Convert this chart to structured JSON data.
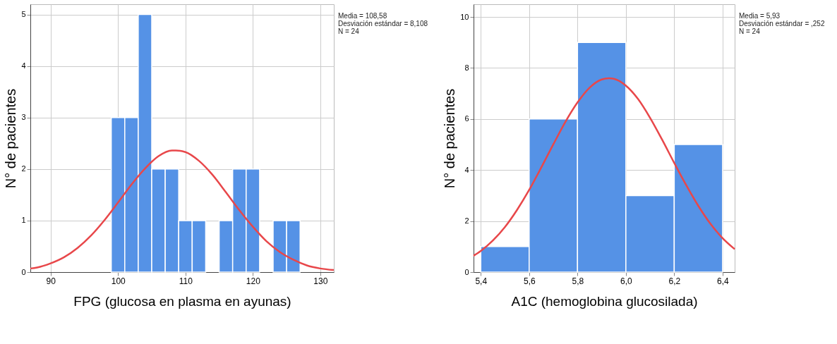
{
  "chart_data": [
    {
      "type": "histogram",
      "xlabel": "FPG (glucosa en plasma en ayunas)",
      "ylabel": "N° de pacientes",
      "color": "#5592e6",
      "grid": true,
      "xlim": [
        87,
        132
      ],
      "xticks": [
        90,
        100,
        110,
        120,
        130
      ],
      "ylim": [
        0,
        5.2
      ],
      "yticks": [
        0,
        1,
        2,
        3,
        4,
        5
      ],
      "bins": [
        99,
        101,
        103,
        105,
        107,
        109,
        111,
        113,
        115,
        117,
        119,
        121,
        123,
        125,
        127
      ],
      "values": [
        3,
        3,
        5,
        2,
        2,
        1,
        1,
        0,
        1,
        2,
        2,
        0,
        1,
        1
      ],
      "series": [
        {
          "type": "line",
          "color": "#e8474a",
          "x": [
            87,
            88,
            90,
            92,
            94,
            96,
            98,
            100,
            102,
            104,
            106,
            108,
            108.58,
            110,
            112,
            114,
            116,
            118,
            120,
            122,
            124,
            126,
            128,
            130,
            132
          ],
          "values": [
            0.07,
            0.09,
            0.17,
            0.29,
            0.47,
            0.71,
            1.01,
            1.35,
            1.7,
            2.01,
            2.25,
            2.36,
            2.36,
            2.33,
            2.16,
            1.89,
            1.55,
            1.2,
            0.88,
            0.6,
            0.39,
            0.24,
            0.13,
            0.07,
            0.04
          ]
        }
      ],
      "annotations": [
        "Media = 108,58",
        "Desviación estándar = 8,108",
        "N = 24"
      ]
    },
    {
      "type": "histogram",
      "xlabel": "A1C (hemoglobina glucosilada)",
      "ylabel": "N° de pacientes",
      "color": "#5592e6",
      "grid": true,
      "xlim": [
        5.37,
        6.45
      ],
      "xticks": [
        {
          "value": 5.4,
          "label": "5,4"
        },
        {
          "value": 5.6,
          "label": "5,6"
        },
        {
          "value": 5.8,
          "label": "5,8"
        },
        {
          "value": 6.0,
          "label": "6,0"
        },
        {
          "value": 6.2,
          "label": "6,2"
        },
        {
          "value": 6.4,
          "label": "6,4"
        }
      ],
      "ylim": [
        0,
        10.5
      ],
      "yticks": [
        0,
        2,
        4,
        6,
        8,
        10
      ],
      "bins": [
        5.4,
        5.6,
        5.8,
        6.0,
        6.2,
        6.4
      ],
      "values": [
        1,
        6,
        9,
        3,
        5
      ],
      "series": [
        {
          "type": "line",
          "color": "#e8474a",
          "x": [
            5.37,
            5.4,
            5.45,
            5.5,
            5.55,
            5.6,
            5.65,
            5.7,
            5.75,
            5.8,
            5.85,
            5.9,
            5.93,
            5.95,
            6.0,
            6.05,
            6.1,
            6.15,
            6.2,
            6.25,
            6.3,
            6.35,
            6.4,
            6.45
          ],
          "values": [
            0.64,
            0.83,
            1.24,
            1.77,
            2.44,
            3.22,
            4.1,
            5.01,
            5.89,
            6.65,
            7.23,
            7.55,
            7.6,
            7.58,
            7.31,
            6.79,
            6.05,
            5.19,
            4.28,
            3.4,
            2.59,
            1.89,
            1.33,
            0.9
          ]
        }
      ],
      "annotations": [
        "Media = 5,93",
        "Desviación estándar = ,252",
        "N = 24"
      ]
    }
  ]
}
